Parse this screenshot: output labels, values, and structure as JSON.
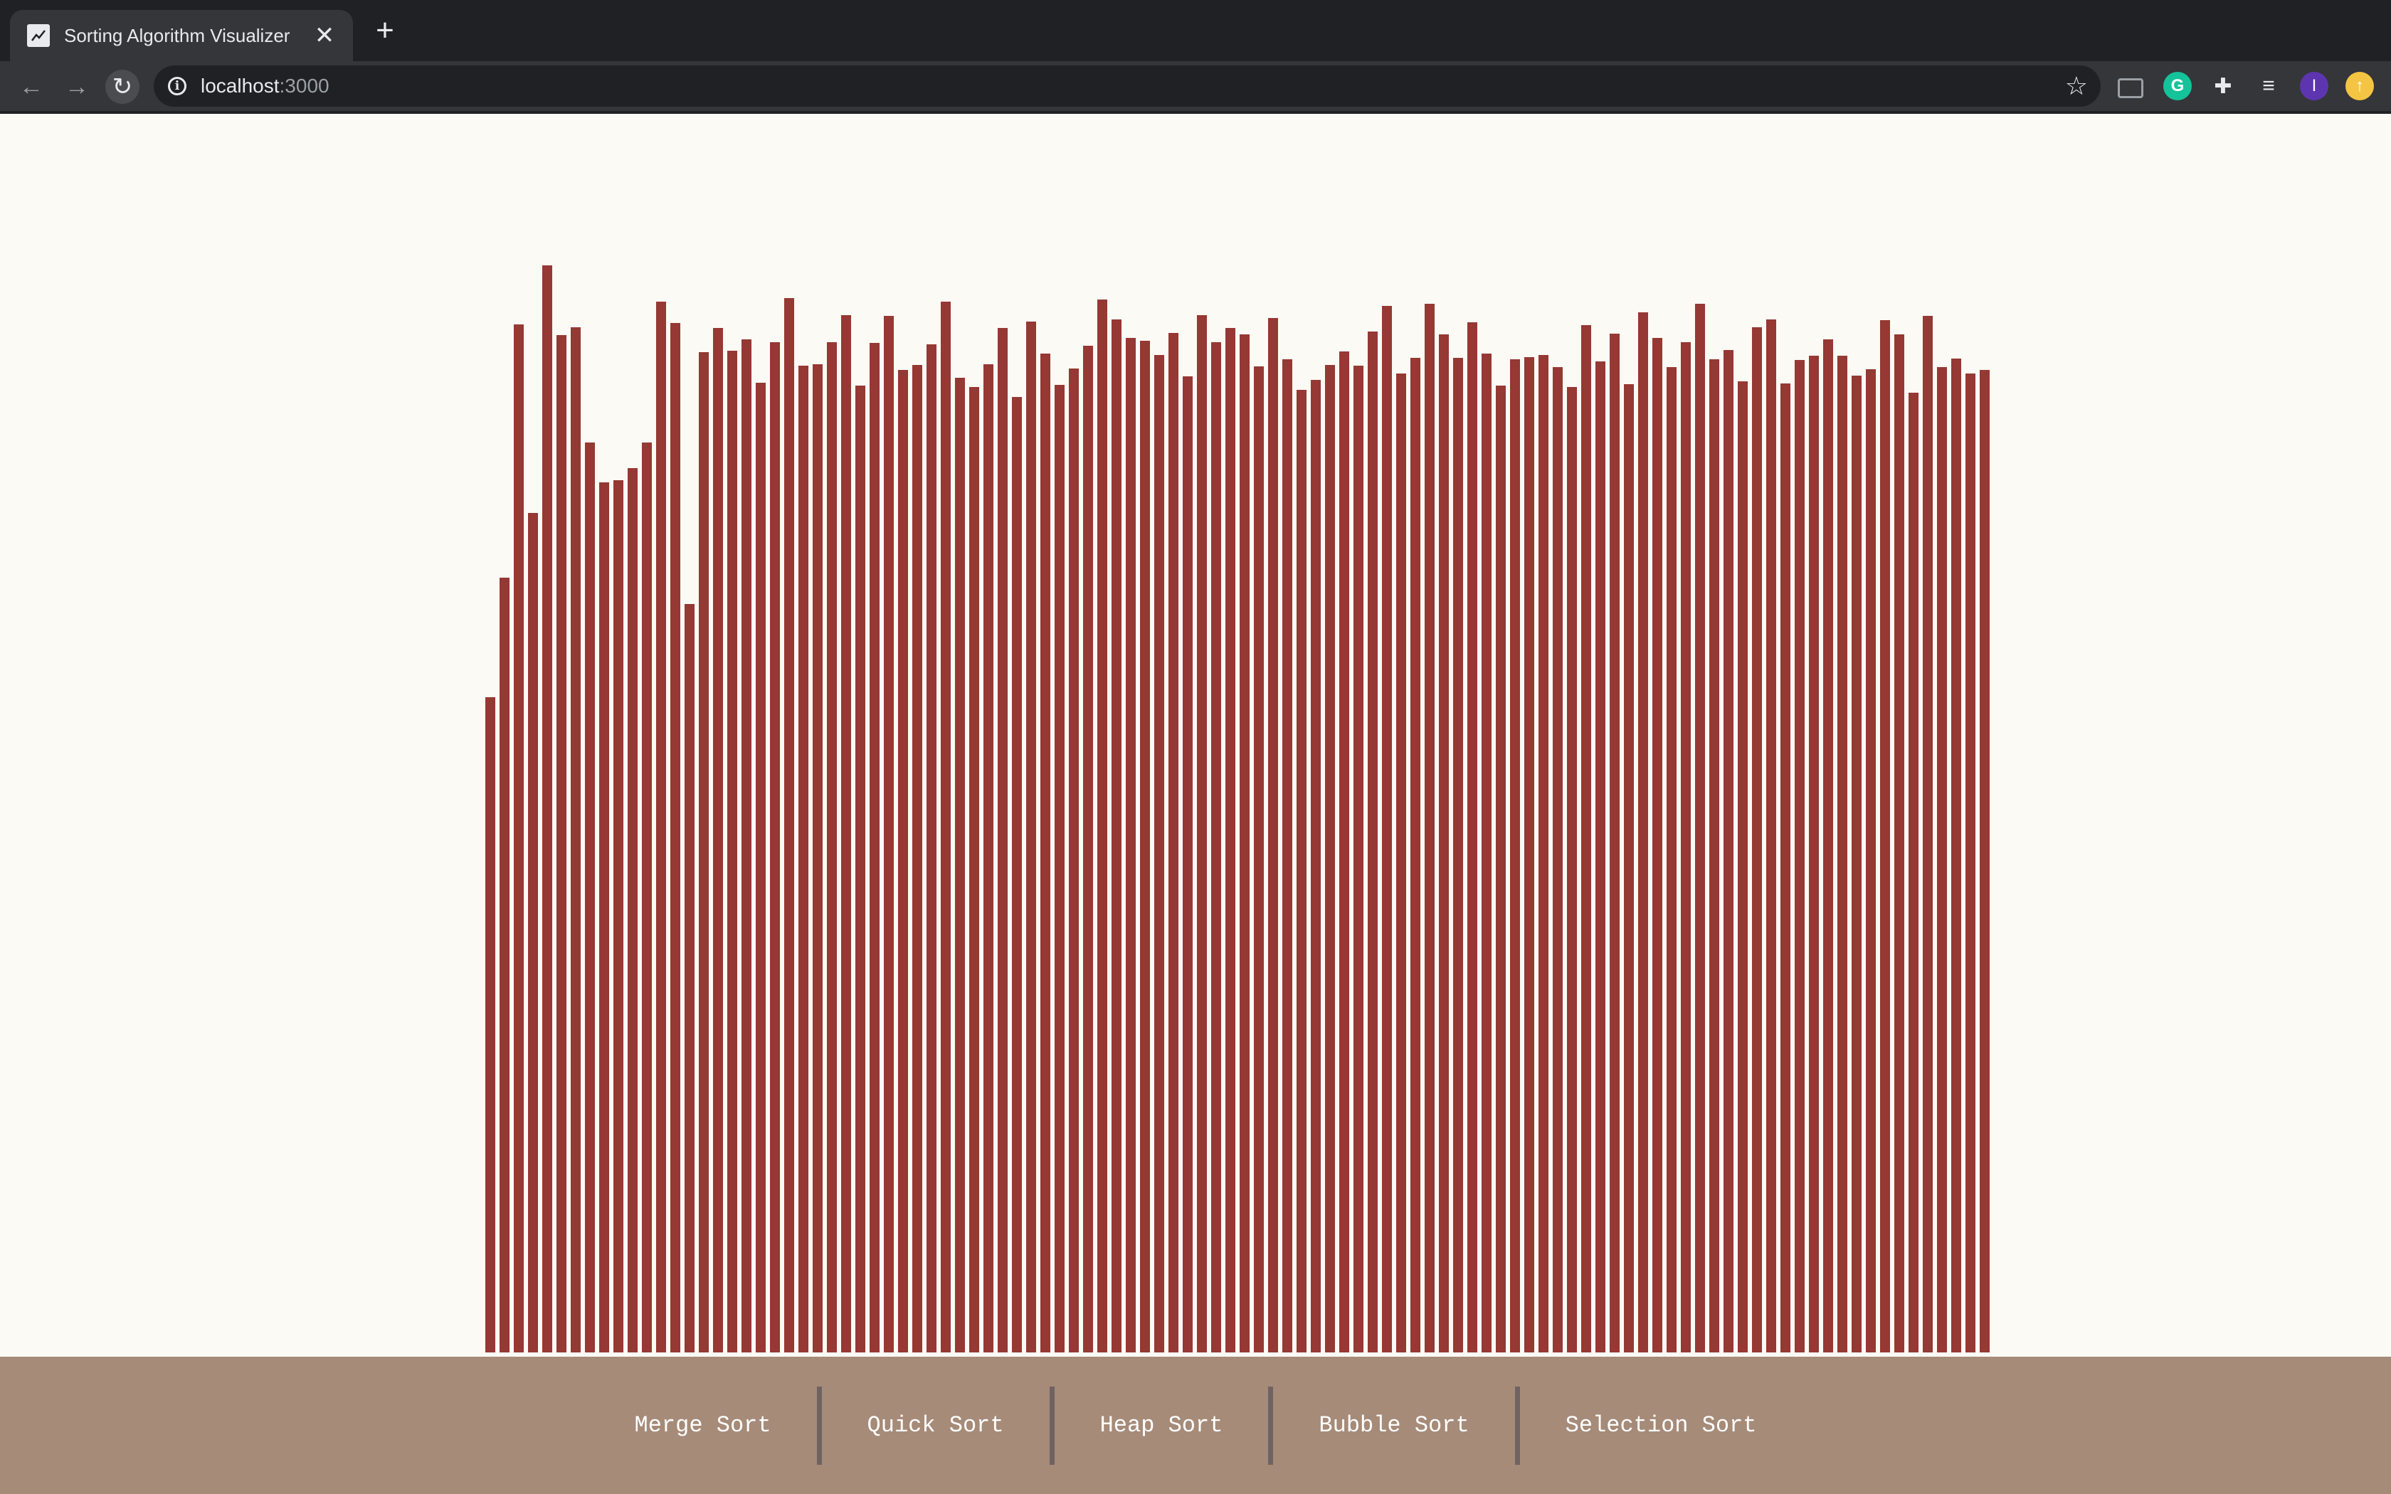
{
  "browser": {
    "tab_title": "Sorting Algorithm Visualizer",
    "url_host": "localhost",
    "url_port": ":3000",
    "profile_initial": "I"
  },
  "colors": {
    "bar": "#963833",
    "footer": "#a68b79",
    "page_background": "#fbfaf5"
  },
  "array_values": [
    1648,
    1948,
    2585,
    2112,
    2734,
    2558,
    2578,
    2289,
    2189,
    2193,
    2224,
    2289,
    2642,
    2589,
    1882,
    2516,
    2577,
    2519,
    2548,
    2438,
    2541,
    2652,
    2482,
    2485,
    2540,
    2609,
    2432,
    2538,
    2607,
    2471,
    2484,
    2535,
    2642,
    2451,
    2427,
    2486,
    2576,
    2402,
    2592,
    2512,
    2433,
    2475,
    2531,
    2648,
    2597,
    2552,
    2544,
    2509,
    2564,
    2454,
    2608,
    2540,
    2577,
    2560,
    2479,
    2602,
    2497,
    2421,
    2446,
    2484,
    2518,
    2481,
    2567,
    2632,
    2461,
    2501,
    2637,
    2561,
    2501,
    2590,
    2512,
    2431,
    2497,
    2503,
    2509,
    2478,
    2427,
    2584,
    2492,
    2562,
    2435,
    2616,
    2552,
    2478,
    2540,
    2638,
    2498,
    2520,
    2443,
    2579,
    2597,
    2436,
    2496,
    2507,
    2548,
    2506,
    2457,
    2472,
    2596,
    2560,
    2414,
    2607,
    2478,
    2499,
    2462,
    2471
  ],
  "footer": {
    "buttons": [
      {
        "label": "Merge Sort"
      },
      {
        "label": "Quick Sort"
      },
      {
        "label": "Heap Sort"
      },
      {
        "label": "Bubble Sort"
      },
      {
        "label": "Selection Sort"
      }
    ]
  }
}
